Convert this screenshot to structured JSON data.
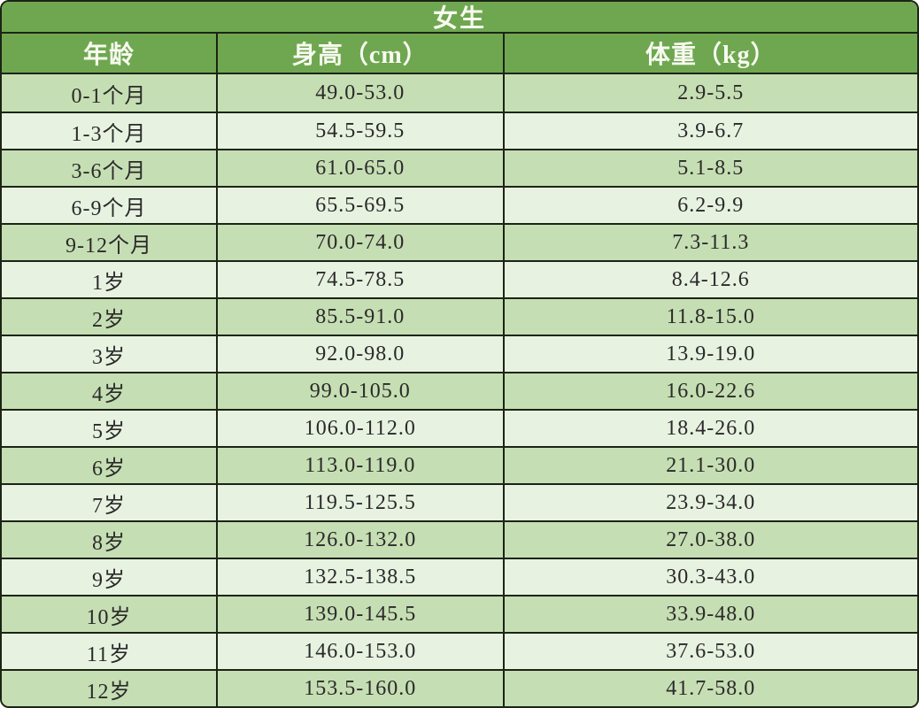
{
  "table": {
    "title": "女生",
    "columns": [
      {
        "key": "age",
        "label": "年龄"
      },
      {
        "key": "height",
        "label": "身高（cm）"
      },
      {
        "key": "weight",
        "label": "体重（kg）"
      }
    ],
    "rows": [
      {
        "age": "0-1个月",
        "height": "49.0-53.0",
        "weight": "2.9-5.5"
      },
      {
        "age": "1-3个月",
        "height": "54.5-59.5",
        "weight": "3.9-6.7"
      },
      {
        "age": "3-6个月",
        "height": "61.0-65.0",
        "weight": "5.1-8.5"
      },
      {
        "age": "6-9个月",
        "height": "65.5-69.5",
        "weight": "6.2-9.9"
      },
      {
        "age": "9-12个月",
        "height": "70.0-74.0",
        "weight": "7.3-11.3"
      },
      {
        "age": "1岁",
        "height": "74.5-78.5",
        "weight": "8.4-12.6"
      },
      {
        "age": "2岁",
        "height": "85.5-91.0",
        "weight": "11.8-15.0"
      },
      {
        "age": "3岁",
        "height": "92.0-98.0",
        "weight": "13.9-19.0"
      },
      {
        "age": "4岁",
        "height": "99.0-105.0",
        "weight": "16.0-22.6"
      },
      {
        "age": "5岁",
        "height": "106.0-112.0",
        "weight": "18.4-26.0"
      },
      {
        "age": "6岁",
        "height": "113.0-119.0",
        "weight": "21.1-30.0"
      },
      {
        "age": "7岁",
        "height": "119.5-125.5",
        "weight": "23.9-34.0"
      },
      {
        "age": "8岁",
        "height": "126.0-132.0",
        "weight": "27.0-38.0"
      },
      {
        "age": "9岁",
        "height": "132.5-138.5",
        "weight": "30.3-43.0"
      },
      {
        "age": "10岁",
        "height": "139.0-145.5",
        "weight": "33.9-48.0"
      },
      {
        "age": "11岁",
        "height": "146.0-153.0",
        "weight": "37.6-53.0"
      },
      {
        "age": "12岁",
        "height": "153.5-160.0",
        "weight": "41.7-58.0"
      }
    ]
  },
  "colors": {
    "header_bg": "#6fa750",
    "header_text": "#f7faf0",
    "row_odd_bg": "#c6deb3",
    "row_even_bg": "#e8f2e1",
    "border": "#1c2415",
    "cell_text": "#2a2a2a"
  },
  "chart_data": {
    "type": "table",
    "title": "女生",
    "columns": [
      "年龄",
      "身高（cm）",
      "体重（kg）"
    ],
    "rows": [
      [
        "0-1个月",
        "49.0-53.0",
        "2.9-5.5"
      ],
      [
        "1-3个月",
        "54.5-59.5",
        "3.9-6.7"
      ],
      [
        "3-6个月",
        "61.0-65.0",
        "5.1-8.5"
      ],
      [
        "6-9个月",
        "65.5-69.5",
        "6.2-9.9"
      ],
      [
        "9-12个月",
        "70.0-74.0",
        "7.3-11.3"
      ],
      [
        "1岁",
        "74.5-78.5",
        "8.4-12.6"
      ],
      [
        "2岁",
        "85.5-91.0",
        "11.8-15.0"
      ],
      [
        "3岁",
        "92.0-98.0",
        "13.9-19.0"
      ],
      [
        "4岁",
        "99.0-105.0",
        "16.0-22.6"
      ],
      [
        "5岁",
        "106.0-112.0",
        "18.4-26.0"
      ],
      [
        "6岁",
        "113.0-119.0",
        "21.1-30.0"
      ],
      [
        "7岁",
        "119.5-125.5",
        "23.9-34.0"
      ],
      [
        "8岁",
        "126.0-132.0",
        "27.0-38.0"
      ],
      [
        "9岁",
        "132.5-138.5",
        "30.3-43.0"
      ],
      [
        "10岁",
        "139.0-145.5",
        "33.9-48.0"
      ],
      [
        "11岁",
        "146.0-153.0",
        "37.6-53.0"
      ],
      [
        "12岁",
        "153.5-160.0",
        "41.7-58.0"
      ]
    ]
  }
}
